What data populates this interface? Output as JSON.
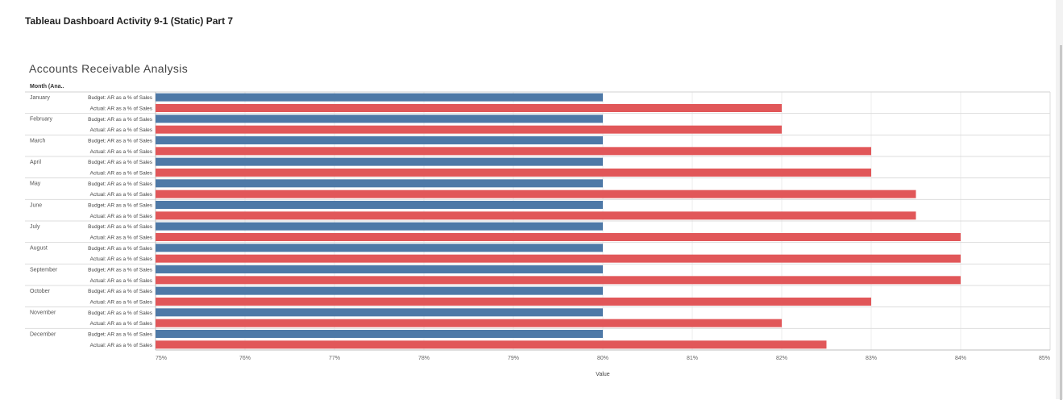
{
  "page": {
    "title": "Tableau Dashboard Activity 9-1 (Static) Part 7"
  },
  "chart_data": {
    "type": "bar",
    "orientation": "horizontal",
    "title": "Accounts Receivable Analysis",
    "row_header": "Month (Ana..",
    "xlabel": "Value",
    "xlim": [
      75,
      85
    ],
    "x_ticks": [
      "75%",
      "76%",
      "77%",
      "78%",
      "79%",
      "80%",
      "81%",
      "82%",
      "83%",
      "84%",
      "85%"
    ],
    "categories": [
      "January",
      "February",
      "March",
      "April",
      "May",
      "June",
      "July",
      "August",
      "September",
      "October",
      "November",
      "December"
    ],
    "series": [
      {
        "name": "Budget: AR as a % of Sales",
        "color": "#4e79a7",
        "values": [
          80,
          80,
          80,
          80,
          80,
          80,
          80,
          80,
          80,
          80,
          80,
          80
        ]
      },
      {
        "name": "Actual: AR as a % of Sales",
        "color": "#e15759",
        "values": [
          82,
          82,
          83,
          83,
          83.5,
          83.5,
          84,
          84,
          84,
          83,
          82,
          82.5
        ]
      }
    ],
    "grid": true
  }
}
